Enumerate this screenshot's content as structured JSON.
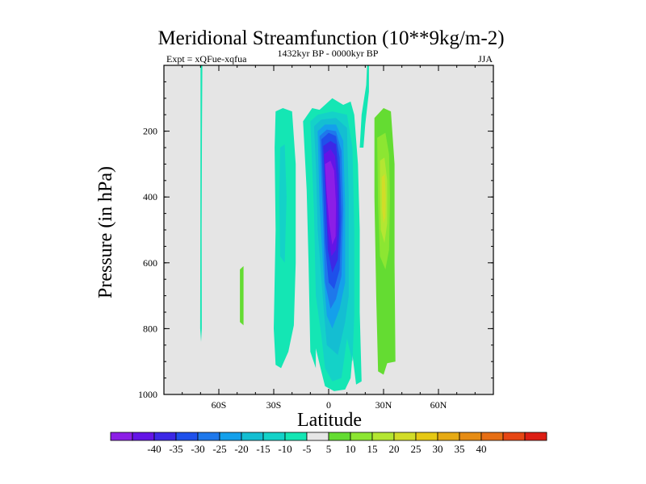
{
  "title": "Meridional Streamfunction (10**9kg/m-2)",
  "left_label": "Expt = xQFue-xqfua",
  "center_label": "1432kyr BP - 0000kyr BP",
  "right_label": "JJA",
  "colors": {
    "background_panel": "#e5e5e5",
    "palette": [
      "#8c1ee6",
      "#6414e6",
      "#3c28e6",
      "#1e50eb",
      "#1e78eb",
      "#14a0eb",
      "#14bed2",
      "#14d2c8",
      "#14e6b4",
      "#e6e6e6",
      "#64dc32",
      "#8ce632",
      "#b4e632",
      "#d2dc28",
      "#e6c814",
      "#e6aa14",
      "#e68c14",
      "#e66e14",
      "#e64614",
      "#dc1e14"
    ]
  },
  "chart_data": {
    "type": "filled-contour",
    "title": "Meridional Streamfunction (10**9kg/m-2)",
    "xlabel": "Latitude",
    "ylabel": "Pressure (in hPa)",
    "xlim": [
      -90,
      90
    ],
    "ylim": [
      1000,
      0
    ],
    "x_ticks": [
      {
        "value": -60,
        "label": "60S"
      },
      {
        "value": -30,
        "label": "30S"
      },
      {
        "value": 0,
        "label": "0"
      },
      {
        "value": 30,
        "label": "30N"
      },
      {
        "value": 60,
        "label": "60N"
      }
    ],
    "y_ticks": [
      {
        "value": 200,
        "label": "200"
      },
      {
        "value": 400,
        "label": "400"
      },
      {
        "value": 600,
        "label": "600"
      },
      {
        "value": 800,
        "label": "800"
      },
      {
        "value": 1000,
        "label": "1000"
      }
    ],
    "contour_levels": [
      -40,
      -35,
      -30,
      -25,
      -20,
      -15,
      -10,
      -5,
      5,
      10,
      15,
      20,
      25,
      30,
      35,
      40
    ],
    "colorbar_labels": [
      "-40",
      "-35",
      "-30",
      "-25",
      "-20",
      "-15",
      "-10",
      "-5",
      "5",
      "10",
      "15",
      "20",
      "25",
      "30",
      "35",
      "40"
    ],
    "regions": [
      {
        "name": "thin-band-75s",
        "level_index": 8,
        "points": [
          [
            -70,
            0
          ],
          [
            -69,
            0
          ],
          [
            -69.2,
            200
          ],
          [
            -69.4,
            500
          ],
          [
            -69.3,
            800
          ],
          [
            -69.7,
            840
          ],
          [
            -70.2,
            800
          ],
          [
            -70.1,
            500
          ],
          [
            -70,
            200
          ]
        ]
      },
      {
        "name": "patch-50s",
        "level_index": 10,
        "points": [
          [
            -48.5,
            620
          ],
          [
            -46.5,
            610
          ],
          [
            -46.5,
            790
          ],
          [
            -48.5,
            780
          ]
        ]
      },
      {
        "name": "band-30s-outer",
        "level_index": 8,
        "points": [
          [
            -29,
            140
          ],
          [
            -25,
            130
          ],
          [
            -20,
            140
          ],
          [
            -18,
            300
          ],
          [
            -18,
            600
          ],
          [
            -19,
            790
          ],
          [
            -22,
            870
          ],
          [
            -26,
            920
          ],
          [
            -29,
            910
          ],
          [
            -30,
            800
          ],
          [
            -29,
            500
          ],
          [
            -29.5,
            250
          ]
        ]
      },
      {
        "name": "band-30s-inner",
        "level_index": 7,
        "points": [
          [
            -26.5,
            250
          ],
          [
            -24,
            240
          ],
          [
            -23,
            400
          ],
          [
            -24,
            600
          ],
          [
            -26.5,
            580
          ],
          [
            -27,
            400
          ]
        ]
      },
      {
        "name": "eq-cell-l1",
        "level_index": 8,
        "points": [
          [
            -14,
            170
          ],
          [
            -9,
            130
          ],
          [
            -5,
            135
          ],
          [
            2,
            100
          ],
          [
            8,
            120
          ],
          [
            12,
            110
          ],
          [
            14,
            150
          ],
          [
            16,
            300
          ],
          [
            17,
            500
          ],
          [
            17,
            750
          ],
          [
            18,
            960
          ],
          [
            15,
            970
          ],
          [
            13,
            880
          ],
          [
            12,
            950
          ],
          [
            9,
            985
          ],
          [
            3,
            990
          ],
          [
            -2,
            975
          ],
          [
            -4,
            930
          ],
          [
            -7,
            860
          ],
          [
            -7,
            920
          ],
          [
            -10,
            870
          ],
          [
            -11,
            600
          ],
          [
            -12,
            380
          ]
        ]
      },
      {
        "name": "eq-cell-l2",
        "level_index": 7,
        "points": [
          [
            -10,
            170
          ],
          [
            -6,
            150
          ],
          [
            2,
            140
          ],
          [
            10,
            150
          ],
          [
            13,
            250
          ],
          [
            14,
            500
          ],
          [
            14,
            760
          ],
          [
            13,
            900
          ],
          [
            10,
            830
          ],
          [
            7,
            950
          ],
          [
            2,
            960
          ],
          [
            -2,
            920
          ],
          [
            -4,
            820
          ],
          [
            -7,
            700
          ],
          [
            -8,
            450
          ]
        ]
      },
      {
        "name": "eq-cell-l3",
        "level_index": 6,
        "points": [
          [
            -8,
            185
          ],
          [
            -4,
            165
          ],
          [
            4,
            160
          ],
          [
            10,
            190
          ],
          [
            11,
            400
          ],
          [
            11,
            700
          ],
          [
            9,
            780
          ],
          [
            5,
            880
          ],
          [
            -1,
            850
          ],
          [
            -3,
            720
          ],
          [
            -6,
            500
          ],
          [
            -7,
            300
          ]
        ]
      },
      {
        "name": "eq-cell-l4",
        "level_index": 5,
        "points": [
          [
            -6,
            200
          ],
          [
            -2,
            180
          ],
          [
            4,
            180
          ],
          [
            8,
            230
          ],
          [
            9,
            420
          ],
          [
            9,
            660
          ],
          [
            6,
            740
          ],
          [
            2,
            800
          ],
          [
            -1,
            760
          ],
          [
            -3,
            620
          ],
          [
            -5,
            420
          ]
        ]
      },
      {
        "name": "eq-cell-l5",
        "level_index": 4,
        "points": [
          [
            -5,
            215
          ],
          [
            -1,
            195
          ],
          [
            4,
            200
          ],
          [
            7,
            260
          ],
          [
            8,
            440
          ],
          [
            7,
            640
          ],
          [
            4,
            710
          ],
          [
            1,
            740
          ],
          [
            -2,
            660
          ],
          [
            -3,
            480
          ]
        ]
      },
      {
        "name": "eq-cell-l6",
        "level_index": 3,
        "points": [
          [
            -4,
            225
          ],
          [
            0,
            205
          ],
          [
            4,
            215
          ],
          [
            6,
            280
          ],
          [
            7,
            460
          ],
          [
            6,
            620
          ],
          [
            3,
            680
          ],
          [
            0,
            660
          ],
          [
            -2,
            540
          ],
          [
            -3,
            380
          ]
        ]
      },
      {
        "name": "eq-cell-l7",
        "level_index": 2,
        "points": [
          [
            -3,
            245
          ],
          [
            1,
            230
          ],
          [
            4,
            240
          ],
          [
            5.5,
            330
          ],
          [
            6,
            480
          ],
          [
            5,
            590
          ],
          [
            2,
            630
          ],
          [
            -0.5,
            560
          ],
          [
            -1.5,
            420
          ]
        ]
      },
      {
        "name": "eq-cell-l8",
        "level_index": 1,
        "points": [
          [
            -2.5,
            270
          ],
          [
            1,
            255
          ],
          [
            3.5,
            275
          ],
          [
            4.8,
            370
          ],
          [
            5,
            490
          ],
          [
            4,
            560
          ],
          [
            1.5,
            580
          ],
          [
            -0.5,
            500
          ]
        ]
      },
      {
        "name": "eq-cell-l9",
        "level_index": 0,
        "points": [
          [
            -2,
            300
          ],
          [
            1,
            290
          ],
          [
            3,
            320
          ],
          [
            4,
            420
          ],
          [
            3.8,
            520
          ],
          [
            2,
            545
          ],
          [
            0.3,
            480
          ],
          [
            -1.2,
            380
          ]
        ]
      },
      {
        "name": "column-10n-top",
        "level_index": 8,
        "points": [
          [
            21,
            0
          ],
          [
            22,
            0
          ],
          [
            22,
            80
          ],
          [
            20,
            180
          ],
          [
            19,
            250
          ],
          [
            17,
            250
          ],
          [
            18,
            150
          ],
          [
            20.5,
            60
          ]
        ]
      },
      {
        "name": "cell-30n-l1",
        "level_index": 10,
        "points": [
          [
            25,
            160
          ],
          [
            30,
            130
          ],
          [
            34,
            140
          ],
          [
            36,
            300
          ],
          [
            36,
            600
          ],
          [
            36.5,
            900
          ],
          [
            32,
            905
          ],
          [
            30,
            940
          ],
          [
            27,
            930
          ],
          [
            26,
            700
          ],
          [
            25,
            400
          ]
        ]
      },
      {
        "name": "cell-30n-l2",
        "level_index": 11,
        "points": [
          [
            26.5,
            220
          ],
          [
            31,
            205
          ],
          [
            33,
            270
          ],
          [
            33.5,
            400
          ],
          [
            33,
            560
          ],
          [
            31,
            620
          ],
          [
            28,
            580
          ],
          [
            27,
            420
          ]
        ]
      },
      {
        "name": "cell-30n-l3",
        "level_index": 12,
        "points": [
          [
            28,
            290
          ],
          [
            30.5,
            280
          ],
          [
            32,
            350
          ],
          [
            32,
            480
          ],
          [
            30.5,
            540
          ],
          [
            28.5,
            500
          ],
          [
            28,
            380
          ]
        ]
      },
      {
        "name": "cell-30n-l4",
        "level_index": 13,
        "points": [
          [
            29,
            340
          ],
          [
            30.6,
            330
          ],
          [
            31.2,
            400
          ],
          [
            31,
            460
          ],
          [
            30,
            480
          ],
          [
            29.2,
            440
          ]
        ]
      }
    ]
  }
}
